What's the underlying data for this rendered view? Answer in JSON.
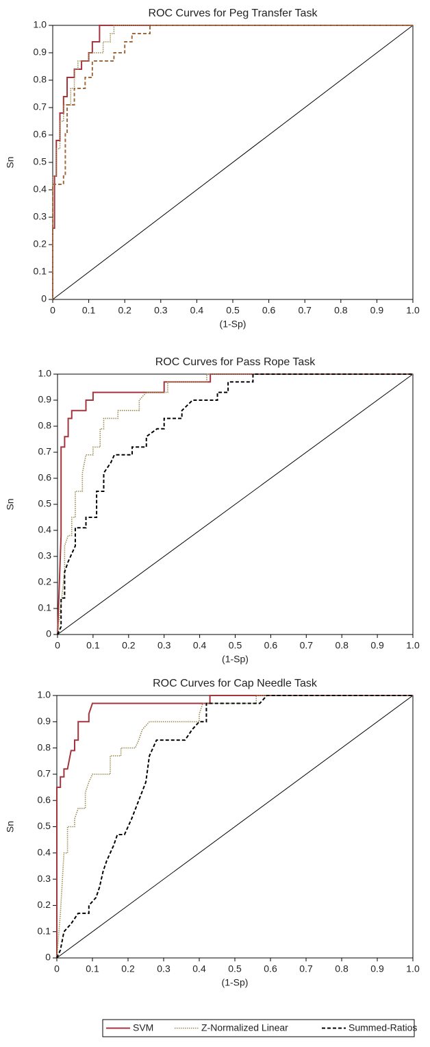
{
  "chart_data": [
    {
      "type": "line",
      "title": "ROC Curves for Peg Transfer Task",
      "xlabel": "(1-Sp)",
      "ylabel": "Sn",
      "xlim": [
        0,
        1
      ],
      "ylim": [
        0,
        1
      ],
      "xticks": [
        0,
        0.1,
        0.2,
        0.3,
        0.4,
        0.5,
        0.6,
        0.7,
        0.8,
        0.9,
        {
          "value": 1,
          "label": "1.0"
        }
      ],
      "yticks": [
        0,
        0.1,
        0.2,
        0.3,
        0.4,
        0.5,
        0.6,
        0.7,
        0.8,
        0.9,
        {
          "value": 1,
          "label": "1.0"
        }
      ],
      "series": [
        {
          "color": "#a3343c",
          "dash": "solid",
          "x": [
            0,
            0,
            0.005,
            0.005,
            0.01,
            0.01,
            0.02,
            0.02,
            0.03,
            0.03,
            0.04,
            0.04,
            0.06,
            0.06,
            0.08,
            0.08,
            0.1,
            0.1,
            0.11,
            0.11,
            0.13,
            0.13,
            1
          ],
          "values": [
            0,
            0.26,
            0.26,
            0.45,
            0.45,
            0.58,
            0.58,
            0.68,
            0.68,
            0.74,
            0.74,
            0.81,
            0.81,
            0.84,
            0.84,
            0.87,
            0.87,
            0.9,
            0.9,
            0.94,
            0.94,
            1,
            1
          ]
        },
        {
          "color": "#9a8a50",
          "dash": "dotted",
          "x": [
            0,
            0,
            0.01,
            0.01,
            0.02,
            0.02,
            0.03,
            0.03,
            0.05,
            0.05,
            0.06,
            0.06,
            0.07,
            0.07,
            0.1,
            0.1,
            0.14,
            0.14,
            0.16,
            0.16,
            0.17,
            0.17,
            1
          ],
          "values": [
            0,
            0.45,
            0.45,
            0.55,
            0.55,
            0.65,
            0.65,
            0.71,
            0.71,
            0.77,
            0.77,
            0.84,
            0.84,
            0.87,
            0.87,
            0.9,
            0.9,
            0.94,
            0.94,
            0.97,
            0.97,
            1,
            1
          ]
        },
        {
          "color": "#a06a40",
          "dash": "dashed",
          "x": [
            0,
            0,
            0.03,
            0.03,
            0.035,
            0.035,
            0.04,
            0.04,
            0.06,
            0.06,
            0.09,
            0.09,
            0.11,
            0.11,
            0.17,
            0.17,
            0.2,
            0.2,
            0.22,
            0.22,
            0.27,
            0.27,
            1
          ],
          "values": [
            0,
            0.42,
            0.42,
            0.45,
            0.45,
            0.61,
            0.61,
            0.71,
            0.71,
            0.77,
            0.77,
            0.81,
            0.81,
            0.87,
            0.87,
            0.9,
            0.9,
            0.94,
            0.94,
            0.97,
            0.97,
            1,
            1
          ]
        }
      ]
    },
    {
      "type": "line",
      "title": "ROC Curves for Pass Rope Task",
      "xlabel": "(1-Sp)",
      "ylabel": "Sn",
      "xlim": [
        0,
        1
      ],
      "ylim": [
        0,
        1
      ],
      "xticks": [
        0,
        0.1,
        0.2,
        0.3,
        0.4,
        0.5,
        0.6,
        0.7,
        0.8,
        0.9,
        {
          "value": 1,
          "label": "1.0"
        }
      ],
      "yticks": [
        0,
        0.1,
        0.2,
        0.3,
        0.4,
        0.5,
        0.6,
        0.7,
        0.8,
        0.9,
        {
          "value": 1,
          "label": "1.0"
        }
      ],
      "series": [
        {
          "color": "#a3343c",
          "dash": "solid",
          "x": [
            0,
            0.01,
            0.01,
            0.02,
            0.02,
            0.03,
            0.03,
            0.04,
            0.04,
            0.08,
            0.08,
            0.1,
            0.1,
            0.3,
            0.3,
            0.43,
            0.43,
            1
          ],
          "values": [
            0,
            0.38,
            0.72,
            0.72,
            0.76,
            0.76,
            0.83,
            0.83,
            0.86,
            0.86,
            0.9,
            0.9,
            0.93,
            0.93,
            0.97,
            0.97,
            1,
            1
          ]
        },
        {
          "color": "#9a8a50",
          "dash": "dotted",
          "x": [
            0,
            0.02,
            0.02,
            0.03,
            0.04,
            0.04,
            0.05,
            0.05,
            0.07,
            0.07,
            0.08,
            0.1,
            0.1,
            0.12,
            0.12,
            0.13,
            0.13,
            0.17,
            0.17,
            0.23,
            0.23,
            0.25,
            0.31,
            0.31,
            0.42,
            0.42,
            1
          ],
          "values": [
            0,
            0.24,
            0.34,
            0.38,
            0.38,
            0.45,
            0.45,
            0.55,
            0.55,
            0.62,
            0.69,
            0.69,
            0.72,
            0.72,
            0.79,
            0.79,
            0.83,
            0.83,
            0.86,
            0.86,
            0.9,
            0.93,
            0.93,
            0.97,
            0.97,
            1,
            1
          ]
        },
        {
          "color": "#000000",
          "dash": "dashed",
          "x": [
            0,
            0.01,
            0.01,
            0.02,
            0.02,
            0.03,
            0.04,
            0.05,
            0.05,
            0.08,
            0.08,
            0.11,
            0.11,
            0.13,
            0.13,
            0.15,
            0.16,
            0.21,
            0.21,
            0.25,
            0.25,
            0.28,
            0.3,
            0.3,
            0.35,
            0.35,
            0.38,
            0.45,
            0.45,
            0.48,
            0.48,
            0.55,
            0.55,
            1
          ],
          "values": [
            0,
            0.03,
            0.14,
            0.14,
            0.24,
            0.28,
            0.31,
            0.34,
            0.41,
            0.41,
            0.45,
            0.45,
            0.55,
            0.55,
            0.62,
            0.66,
            0.69,
            0.69,
            0.72,
            0.72,
            0.76,
            0.79,
            0.79,
            0.83,
            0.83,
            0.86,
            0.9,
            0.9,
            0.93,
            0.93,
            0.97,
            0.97,
            1,
            1
          ]
        }
      ]
    },
    {
      "type": "line",
      "title": "ROC Curves for Cap Needle Task",
      "xlabel": "(1-Sp)",
      "ylabel": "Sn",
      "xlim": [
        0,
        1
      ],
      "ylim": [
        0,
        1
      ],
      "xticks": [
        0,
        0.1,
        0.2,
        0.3,
        0.4,
        0.5,
        0.6,
        0.7,
        0.8,
        0.9,
        {
          "value": 1,
          "label": "1.0"
        }
      ],
      "yticks": [
        0,
        0.1,
        0.2,
        0.3,
        0.4,
        0.5,
        0.6,
        0.7,
        0.8,
        0.9,
        {
          "value": 1,
          "label": "1.0"
        }
      ],
      "series": [
        {
          "name": "SVM",
          "color": "#a3343c",
          "dash": "solid",
          "x": [
            0,
            0,
            0.01,
            0.01,
            0.02,
            0.02,
            0.03,
            0.04,
            0.05,
            0.05,
            0.06,
            0.06,
            0.09,
            0.09,
            0.1,
            0.43,
            0.43,
            1
          ],
          "values": [
            0,
            0.65,
            0.65,
            0.69,
            0.69,
            0.72,
            0.72,
            0.79,
            0.79,
            0.83,
            0.83,
            0.9,
            0.9,
            0.93,
            0.97,
            0.97,
            1,
            1
          ]
        },
        {
          "name": "Z-Normalized Linear",
          "color": "#9a8a50",
          "dash": "dotted",
          "x": [
            0,
            0.01,
            0.02,
            0.03,
            0.03,
            0.05,
            0.05,
            0.06,
            0.08,
            0.08,
            0.09,
            0.1,
            0.15,
            0.15,
            0.18,
            0.18,
            0.22,
            0.23,
            0.24,
            0.26,
            0.4,
            0.4,
            0.41,
            0.56,
            0.56,
            1
          ],
          "values": [
            0,
            0.17,
            0.4,
            0.4,
            0.5,
            0.5,
            0.53,
            0.57,
            0.57,
            0.63,
            0.67,
            0.7,
            0.7,
            0.77,
            0.77,
            0.8,
            0.8,
            0.83,
            0.87,
            0.9,
            0.9,
            0.93,
            0.97,
            0.97,
            1,
            1
          ]
        },
        {
          "name": "Summed-Ratios",
          "color": "#000000",
          "dash": "dashed",
          "x": [
            0,
            0.01,
            0.02,
            0.04,
            0.06,
            0.09,
            0.09,
            0.11,
            0.12,
            0.13,
            0.14,
            0.15,
            0.16,
            0.17,
            0.19,
            0.21,
            0.23,
            0.25,
            0.26,
            0.28,
            0.36,
            0.38,
            0.4,
            0.42,
            0.42,
            0.57,
            0.59,
            1
          ],
          "values": [
            0,
            0.03,
            0.1,
            0.13,
            0.17,
            0.17,
            0.2,
            0.23,
            0.27,
            0.33,
            0.37,
            0.4,
            0.43,
            0.47,
            0.47,
            0.53,
            0.6,
            0.67,
            0.77,
            0.83,
            0.83,
            0.87,
            0.9,
            0.9,
            0.97,
            0.97,
            1,
            1
          ]
        }
      ],
      "legend": "bottom"
    }
  ]
}
